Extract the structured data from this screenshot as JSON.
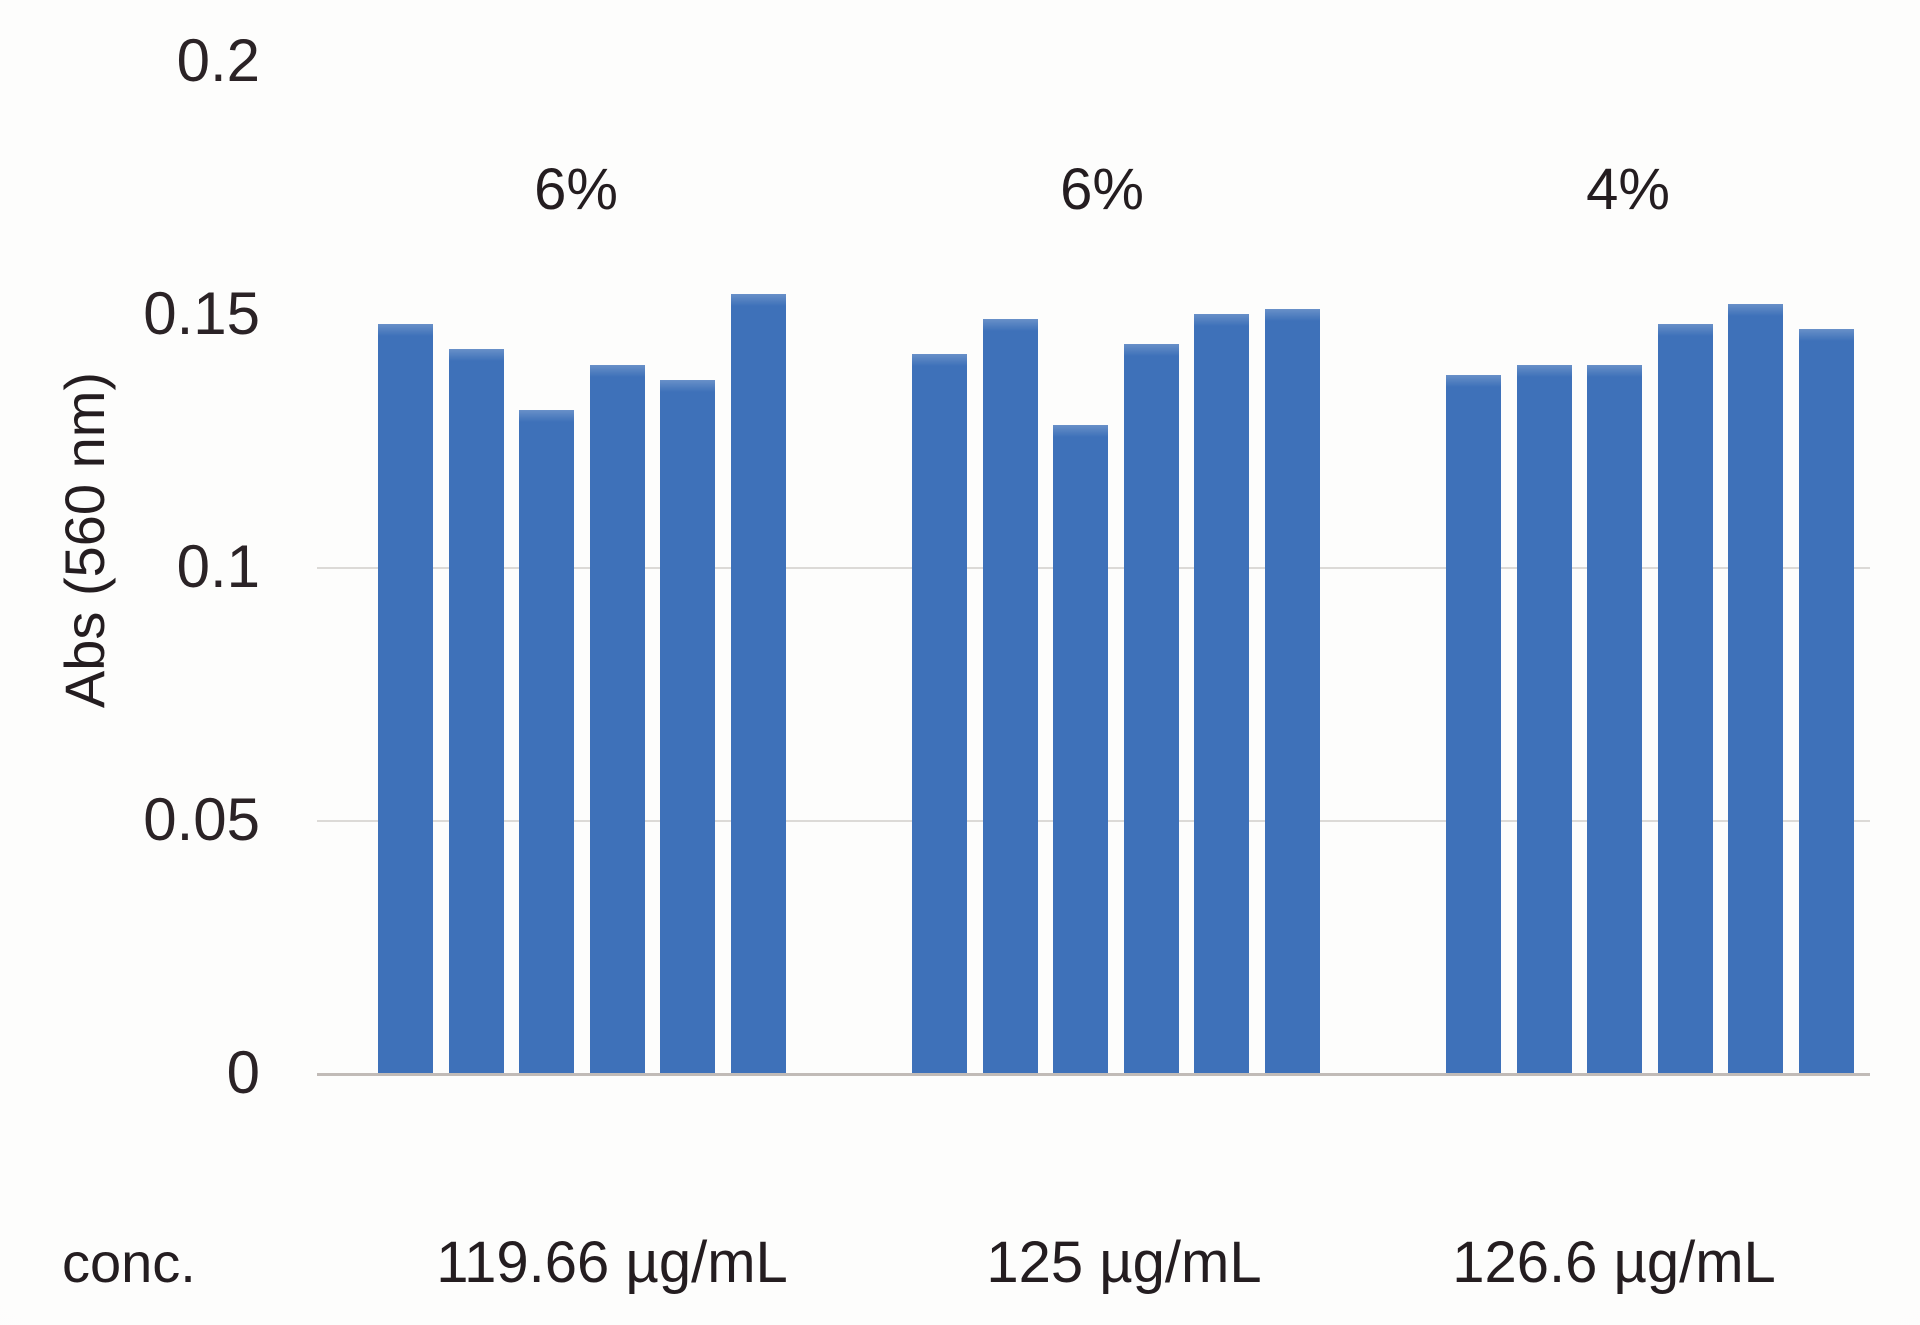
{
  "chart_data": {
    "type": "bar",
    "title": "",
    "ylabel": "Abs (560 nm)",
    "xlabel": "conc.",
    "ylim": [
      0,
      0.2
    ],
    "yticks": [
      {
        "label": "0.2",
        "value": 0.2
      },
      {
        "label": "0.15",
        "value": 0.15
      },
      {
        "label": "0.1",
        "value": 0.1
      },
      {
        "label": "0.05",
        "value": 0.05
      },
      {
        "label": "0",
        "value": 0
      }
    ],
    "gridline_values": [
      0.1,
      0.05
    ],
    "baseline_value": 0,
    "grid": "horizontal-partial",
    "legend_position": "none",
    "bar_color": "#3e71b9",
    "groups": [
      {
        "annotation": "6%",
        "concentration": "119.66 µg/mL",
        "values": [
          0.148,
          0.143,
          0.131,
          0.14,
          0.137,
          0.154
        ]
      },
      {
        "annotation": "6%",
        "concentration": "125 µg/mL",
        "values": [
          0.142,
          0.149,
          0.128,
          0.144,
          0.15,
          0.151
        ]
      },
      {
        "annotation": "4%",
        "concentration": "126.6 µg/mL",
        "values": [
          0.138,
          0.14,
          0.14,
          0.148,
          0.152,
          0.147
        ]
      }
    ]
  },
  "colors": {
    "background": "#fcfbfa",
    "text": "#2b2326",
    "gridline": "#dcdad7",
    "baseline": "#c1bbb7",
    "bar": "#3e71b9"
  }
}
